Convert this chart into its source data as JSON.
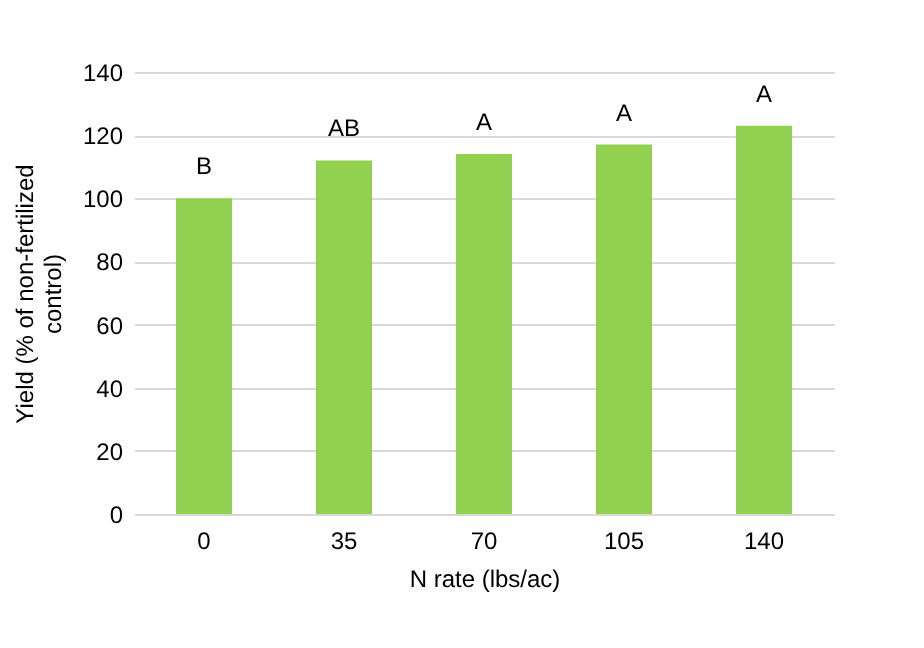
{
  "chart_data": {
    "type": "bar",
    "xlabel": "N rate (lbs/ac)",
    "ylabel": "Yield (% of non-fertilized control)",
    "categories": [
      "0",
      "35",
      "70",
      "105",
      "140"
    ],
    "values": [
      100,
      112,
      114,
      117,
      123
    ],
    "color": "#92d050",
    "ylim": [
      0,
      140
    ],
    "yticks": [
      0,
      20,
      40,
      60,
      80,
      100,
      120,
      140
    ],
    "grid": "y",
    "annotations": [
      {
        "text": "B",
        "x": "0",
        "y": 100
      },
      {
        "text": "AB",
        "x": "35",
        "y": 112
      },
      {
        "text": "A",
        "x": "70",
        "y": 114
      },
      {
        "text": "A",
        "x": "105",
        "y": 117
      },
      {
        "text": "A",
        "x": "140",
        "y": 123
      }
    ]
  }
}
